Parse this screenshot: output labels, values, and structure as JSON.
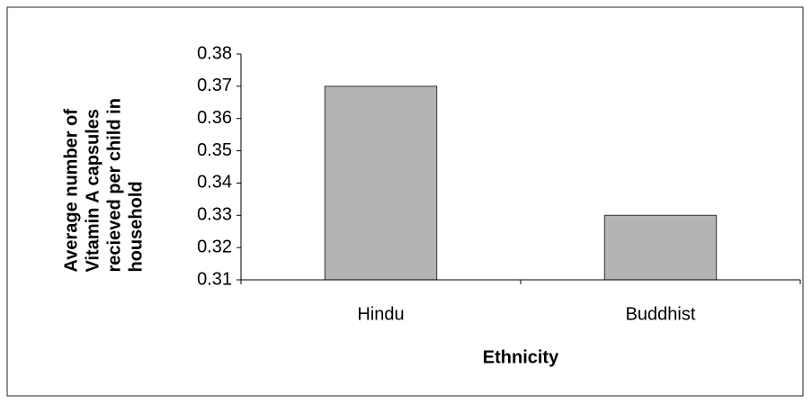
{
  "chart_data": {
    "type": "bar",
    "y_label": "Average number of Vitamin A capsules recieved per child in household",
    "x_label": "Ethnicity",
    "categories": [
      "Hindu",
      "Buddhist"
    ],
    "values": [
      0.37,
      0.33
    ],
    "color": "#b4b4b4",
    "ylim": [
      0.31,
      0.38
    ],
    "yticks": [
      0.31,
      0.32,
      0.33,
      0.34,
      0.35,
      0.36,
      0.37,
      0.38
    ],
    "grid": false
  }
}
